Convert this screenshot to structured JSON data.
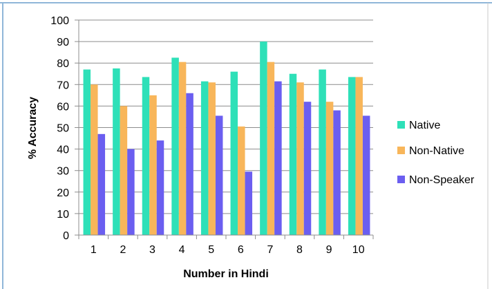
{
  "chart_data": {
    "type": "bar",
    "title": "",
    "xlabel": "Number in Hindi",
    "ylabel": "% Accuracy",
    "ylim": [
      0,
      100
    ],
    "yticks": [
      0,
      10,
      20,
      30,
      40,
      50,
      60,
      70,
      80,
      90,
      100
    ],
    "grid": true,
    "legend_position": "right",
    "categories": [
      "1",
      "2",
      "3",
      "4",
      "5",
      "6",
      "7",
      "8",
      "9",
      "10"
    ],
    "series": [
      {
        "name": "Native",
        "color": "#2ee0b8",
        "values": [
          77,
          77.5,
          73.5,
          82.5,
          71.5,
          76,
          90,
          75,
          77,
          73.5
        ]
      },
      {
        "name": "Non-Native",
        "color": "#f8b65a",
        "values": [
          70,
          60,
          65,
          80.5,
          71,
          50.5,
          80.5,
          71,
          62,
          73.5
        ]
      },
      {
        "name": "Non-Speaker",
        "color": "#6b5ef0",
        "values": [
          47,
          40,
          44,
          66,
          55.5,
          29.5,
          71.5,
          62,
          58,
          55.5
        ]
      }
    ]
  }
}
